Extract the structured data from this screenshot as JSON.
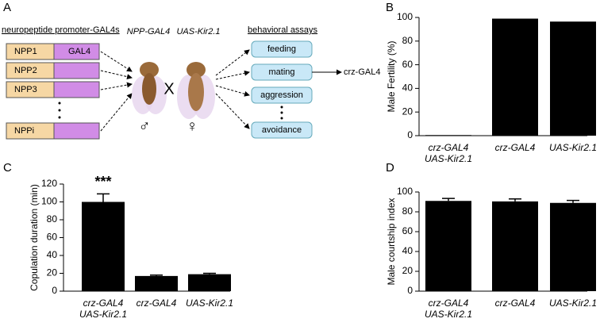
{
  "diagram": {
    "panel_label": "A",
    "left_title": "neuropeptide promoter-GAL4s",
    "constructs": [
      "NPP1",
      "NPP2",
      "NPP3",
      "NPPi"
    ],
    "driver": "GAL4",
    "male_genotype": "NPP-GAL4",
    "female_genotype": "UAS-Kir2.1",
    "cross": "X",
    "male_symbol": "♂",
    "female_symbol": "♀",
    "right_title": "behavioral assays",
    "assays": [
      "feeding",
      "mating",
      "aggression",
      "avoidance"
    ],
    "result": "crz-GAL4"
  },
  "chart_data": [
    {
      "type": "bar",
      "panel_label": "B",
      "y_label": "Male Fertility (%)",
      "categories": [
        "crz-GAL4\nUAS-Kir2.1",
        "crz-GAL4",
        "UAS-Kir2.1"
      ],
      "values": [
        0.5,
        99,
        96.5
      ],
      "color": "#000000",
      "ylim": [
        0,
        100
      ],
      "yticks": [
        0,
        20,
        40,
        60,
        80,
        100
      ]
    },
    {
      "type": "bar",
      "panel_label": "C",
      "y_label": "Copulation duration (min)",
      "categories": [
        "crz-GAL4\nUAS-Kir2.1",
        "crz-GAL4",
        "UAS-Kir2.1"
      ],
      "values": [
        100,
        17,
        19
      ],
      "errors": [
        9,
        1,
        1
      ],
      "color": "#000000",
      "annotation": "***",
      "ylim": [
        0,
        120
      ],
      "yticks": [
        0,
        20,
        40,
        60,
        80,
        100,
        120
      ]
    },
    {
      "type": "bar",
      "panel_label": "D",
      "y_label": "Male courtship index",
      "categories": [
        "crz-GAL4\nUAS-Kir2.1",
        "crz-GAL4",
        "UAS-Kir2.1"
      ],
      "values": [
        91,
        90.5,
        89
      ],
      "errors": [
        2.5,
        2.5,
        2.5
      ],
      "color": "#000000",
      "ylim": [
        0,
        100
      ],
      "yticks": [
        0,
        20,
        40,
        60,
        80,
        100
      ]
    }
  ]
}
